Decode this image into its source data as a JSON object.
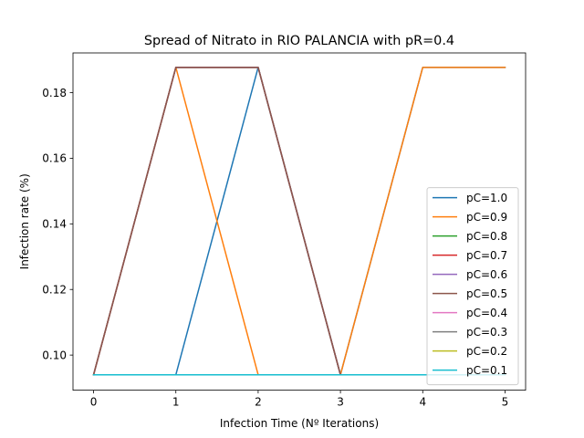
{
  "chart_data": {
    "type": "line",
    "title": "Spread of Nitrato in RIO PALANCIA with pR=0.4",
    "xlabel": "Infection Time (Nº Iterations)",
    "ylabel": "Infection rate (%)",
    "x": [
      0,
      1,
      2,
      3,
      4,
      5
    ],
    "xlim": [
      -0.25,
      5.25
    ],
    "ylim": [
      0.0893,
      0.1921
    ],
    "xticks": [
      "0",
      "1",
      "2",
      "3",
      "4",
      "5"
    ],
    "yticks": [
      "0.10",
      "0.12",
      "0.14",
      "0.16",
      "0.18"
    ],
    "ytick_values": [
      0.1,
      0.12,
      0.14,
      0.16,
      0.18
    ],
    "legend_position": "lower right",
    "grid": false,
    "series": [
      {
        "name": "pC=1.0",
        "color": "#1f77b4",
        "values": [
          0.094,
          0.094,
          0.1877,
          0.094,
          0.1877,
          0.1877
        ]
      },
      {
        "name": "pC=0.9",
        "color": "#ff7f0e",
        "values": [
          0.094,
          0.1877,
          0.094,
          0.094,
          0.1877,
          0.1877
        ]
      },
      {
        "name": "pC=0.8",
        "color": "#2ca02c",
        "values": [
          0.094,
          0.1877,
          0.1877,
          0.094,
          0.094,
          0.094
        ]
      },
      {
        "name": "pC=0.7",
        "color": "#d62728",
        "values": [
          0.094,
          0.1877,
          0.1877,
          0.094,
          0.094,
          0.094
        ]
      },
      {
        "name": "pC=0.6",
        "color": "#9467bd",
        "values": [
          0.094,
          0.1877,
          0.1877,
          0.094,
          0.094,
          0.094
        ]
      },
      {
        "name": "pC=0.5",
        "color": "#8c564b",
        "values": [
          0.094,
          0.1877,
          0.1877,
          0.094,
          0.094,
          0.094
        ]
      },
      {
        "name": "pC=0.4",
        "color": "#e377c2",
        "values": [
          0.094,
          0.094,
          0.094,
          0.094,
          0.094,
          0.094
        ]
      },
      {
        "name": "pC=0.3",
        "color": "#7f7f7f",
        "values": [
          0.094,
          0.094,
          0.094,
          0.094,
          0.094,
          0.094
        ]
      },
      {
        "name": "pC=0.2",
        "color": "#bcbd22",
        "values": [
          0.094,
          0.094,
          0.094,
          0.094,
          0.094,
          0.094
        ]
      },
      {
        "name": "pC=0.1",
        "color": "#17becf",
        "values": [
          0.094,
          0.094,
          0.094,
          0.094,
          0.094,
          0.094
        ]
      }
    ]
  }
}
